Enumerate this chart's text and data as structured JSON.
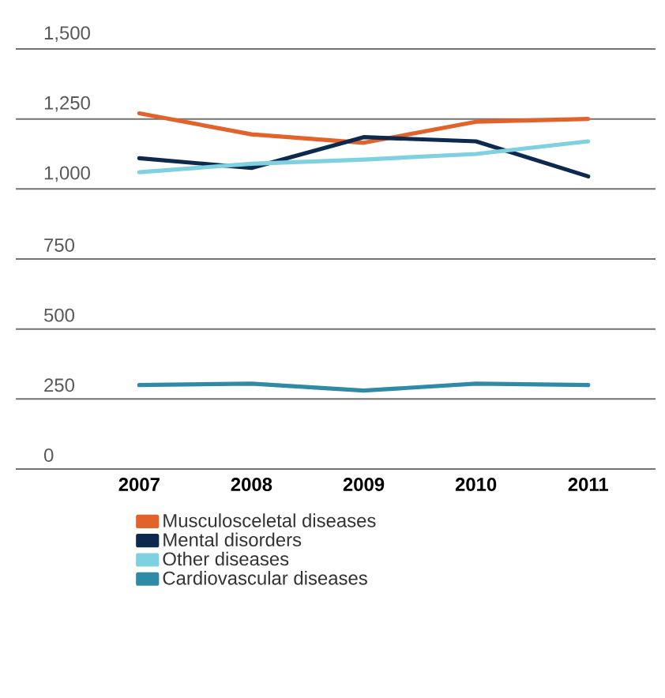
{
  "chart_data": {
    "type": "line",
    "categories": [
      "2007",
      "2008",
      "2009",
      "2010",
      "2011"
    ],
    "series": [
      {
        "name": "Musculosceletal diseases",
        "color": "#e2622a",
        "values": [
          1270,
          1195,
          1165,
          1240,
          1250
        ]
      },
      {
        "name": "Mental disorders",
        "color": "#0d2a4e",
        "values": [
          1110,
          1075,
          1185,
          1170,
          1045
        ]
      },
      {
        "name": "Other diseases",
        "color": "#7fd0e0",
        "values": [
          1060,
          1090,
          1105,
          1125,
          1170
        ]
      },
      {
        "name": "Cardiovascular diseases",
        "color": "#2f8aa8",
        "values": [
          300,
          305,
          280,
          305,
          300
        ]
      }
    ],
    "ylim": [
      0,
      1500
    ],
    "yticks": [
      {
        "value": 0,
        "label": "0"
      },
      {
        "value": 250,
        "label": "250"
      },
      {
        "value": 500,
        "label": "500"
      },
      {
        "value": 750,
        "label": "750"
      },
      {
        "value": 1000,
        "label": "1,000"
      },
      {
        "value": 1250,
        "label": "1,250"
      },
      {
        "value": 1500,
        "label": "1,500"
      }
    ],
    "grid": "y",
    "legend": "bottom",
    "marker": "none",
    "line_style": "solid"
  }
}
